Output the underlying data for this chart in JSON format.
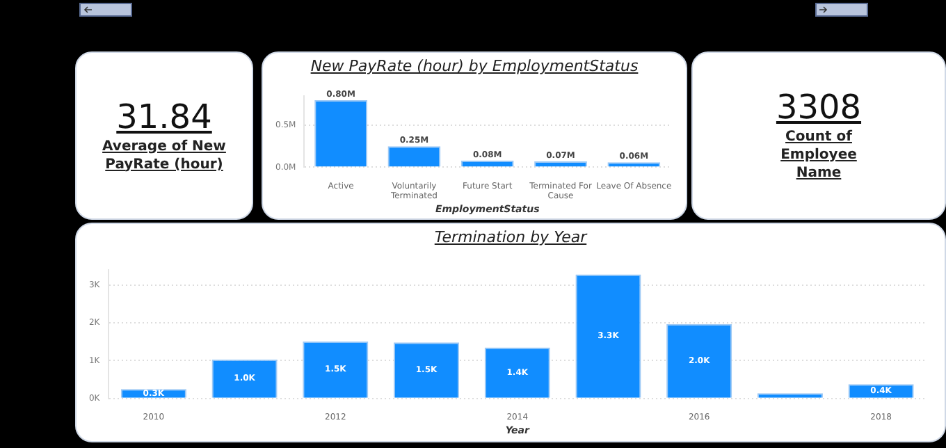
{
  "chart_data": [
    {
      "type": "other",
      "annotations": [
        "31.84",
        "Average of New PayRate (hour)"
      ]
    },
    {
      "type": "bar",
      "title": "New PayRate (hour) by EmploymentStatus",
      "xlabel": "EmploymentStatus",
      "categories": [
        "Active",
        "Voluntarily Terminated",
        "Future Start",
        "Terminated For Cause",
        "Leave Of Absence"
      ],
      "values": [
        800000,
        250000,
        80000,
        70000,
        60000
      ],
      "value_labels": [
        "0.80M",
        "0.25M",
        "0.08M",
        "0.07M",
        "0.06M"
      ],
      "color": "#118dff",
      "ylim": [
        0,
        850000
      ],
      "yticks": [
        {
          "value": 0,
          "label": "0.0M"
        },
        {
          "value": 500000,
          "label": "0.5M"
        }
      ],
      "grid": "y"
    },
    {
      "type": "other",
      "annotations": [
        "3308",
        "Count of Employee Name"
      ]
    },
    {
      "type": "bar",
      "title": "Termination by Year",
      "xlabel": "Year",
      "categories": [
        "2010",
        null,
        "2012",
        null,
        "2014",
        null,
        "2016",
        null,
        "2018"
      ],
      "values": [
        250,
        1030,
        1510,
        1480,
        1350,
        3280,
        1970,
        140,
        380
      ],
      "value_labels": [
        "0.3K",
        "1.0K",
        "1.5K",
        "1.5K",
        "1.4K",
        "3.3K",
        "2.0K",
        null,
        "0.4K"
      ],
      "color": "#118dff",
      "ylim": [
        0,
        3400
      ],
      "yticks": [
        {
          "value": 0,
          "label": "0K"
        },
        {
          "value": 1000,
          "label": "1K"
        },
        {
          "value": 2000,
          "label": "2K"
        },
        {
          "value": 3000,
          "label": "3K"
        }
      ],
      "grid": "y"
    }
  ]
}
